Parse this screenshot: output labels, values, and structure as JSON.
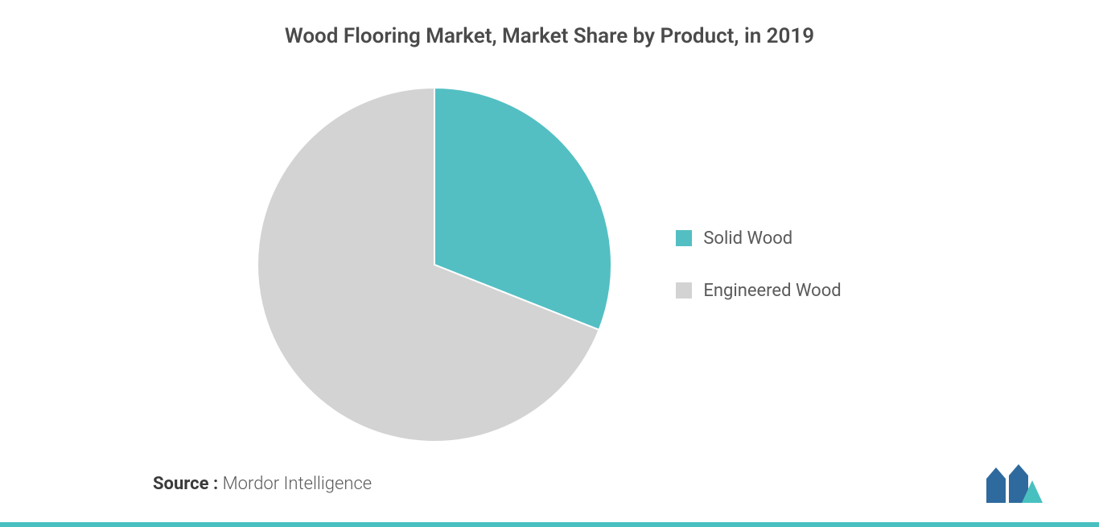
{
  "chart": {
    "type": "pie",
    "title": "Wood Flooring Market, Market Share by Product, in 2019",
    "title_fontsize": 26,
    "title_color": "#4a4a4a",
    "background_color": "#ffffff",
    "slices": [
      {
        "label": "Solid Wood",
        "value": 31,
        "color": "#53bfc3"
      },
      {
        "label": "Engineered Wood",
        "value": 69,
        "color": "#d3d3d3"
      }
    ],
    "pie_radius": 220,
    "stroke_color": "#ffffff",
    "stroke_width": 2,
    "legend": {
      "position": "right",
      "fontsize": 22,
      "text_color": "#5a5a5a",
      "swatch_size": 20,
      "item_gap": 40
    }
  },
  "source": {
    "label": "Source :",
    "name": "Mordor Intelligence",
    "fontsize": 22,
    "label_color": "#3a3a3a",
    "name_color": "#5a5a5a"
  },
  "logo": {
    "name": "mordor-intelligence-logo",
    "bar1_color": "#2f6a9e",
    "bar2_color": "#2f6a9e",
    "triangle_color": "#48c0c0"
  },
  "accent_bar_color": "#48c0c0"
}
